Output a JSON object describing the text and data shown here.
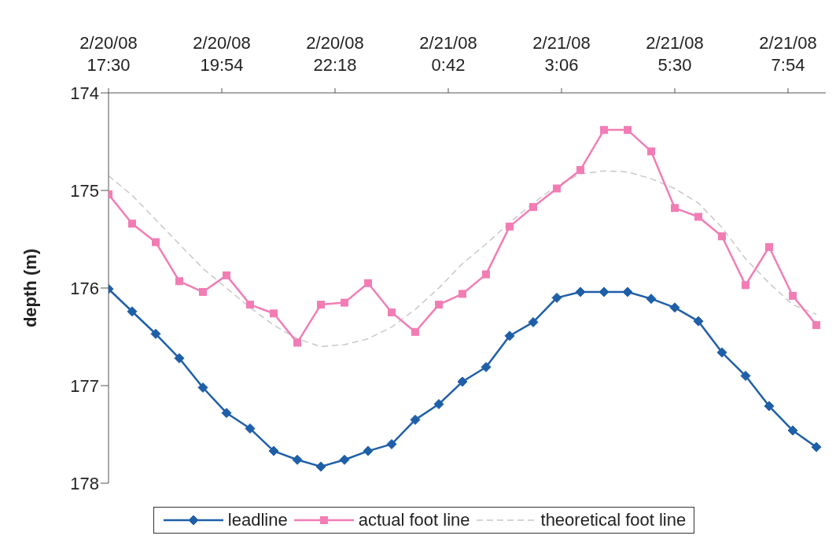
{
  "chart_data": {
    "type": "line",
    "ylabel": "depth (m)",
    "x": [
      "--02-20T17:30",
      "--02-20T18:00",
      "--02-20T18:30",
      "--02-20T19:00",
      "--02-20T19:30",
      "--02-20T20:00",
      "--02-20T20:30",
      "--02-20T21:00",
      "--02-20T21:30",
      "--02-20T22:00",
      "--02-20T22:30",
      "--02-20T23:00",
      "--02-20T23:30",
      "--02-21T00:00",
      "--02-21T00:30",
      "--02-21T01:00",
      "--02-21T01:30",
      "--02-21T02:00",
      "--02-21T02:30",
      "--02-21T03:00",
      "--02-21T03:30",
      "--02-21T04:00",
      "--02-21T04:30",
      "--02-21T05:00",
      "--02-21T05:30",
      "--02-21T06:00",
      "--02-21T06:30",
      "--02-21T07:00",
      "--02-21T07:30",
      "--02-21T08:00",
      "--02-21T08:30"
    ],
    "xlim": [
      "--02-20T17:30",
      "--02-21T08:42"
    ],
    "xticks": [
      {
        "value": "--02-20T17:30",
        "label": "2/20/08 17:30"
      },
      {
        "value": "--02-20T19:54",
        "label": "2/20/08 19:54"
      },
      {
        "value": "--02-20T22:18",
        "label": "2/20/08 22:18"
      },
      {
        "value": "--02-21T00:42",
        "label": "2/21/08 0:42"
      },
      {
        "value": "--02-21T03:06",
        "label": "2/21/08 3:06"
      },
      {
        "value": "--02-21T05:30",
        "label": "2/21/08 5:30"
      },
      {
        "value": "--02-21T07:54",
        "label": "2/21/08 7:54"
      }
    ],
    "ylim": [
      178,
      174
    ],
    "yticks": [
      174,
      175,
      176,
      177,
      178
    ],
    "grid": false,
    "legend": "bottom",
    "series": [
      {
        "name": "leadline",
        "color": "#1f5fa8",
        "marker": "diamond",
        "line_style": "solid",
        "values": [
          176.01,
          176.24,
          176.47,
          176.72,
          177.02,
          177.28,
          177.44,
          177.67,
          177.76,
          177.83,
          177.76,
          177.67,
          177.6,
          177.35,
          177.19,
          176.96,
          176.81,
          176.49,
          176.35,
          176.1,
          176.04,
          176.04,
          176.04,
          176.11,
          176.2,
          176.34,
          176.66,
          176.9,
          177.21,
          177.46,
          177.63
        ]
      },
      {
        "name": "actual foot line",
        "color": "#f27db5",
        "marker": "square",
        "line_style": "solid",
        "values": [
          175.04,
          175.34,
          175.53,
          175.93,
          176.04,
          175.87,
          176.17,
          176.26,
          176.56,
          176.17,
          176.15,
          175.95,
          176.25,
          176.45,
          176.17,
          176.06,
          175.86,
          175.37,
          175.17,
          174.98,
          174.79,
          174.38,
          174.38,
          174.6,
          175.18,
          175.27,
          175.47,
          175.97,
          175.58,
          176.08,
          176.38
        ]
      },
      {
        "name": "theoretical foot line",
        "color": "#c8c8c8",
        "marker": "none",
        "line_style": "dashed",
        "values": [
          174.85,
          175.05,
          175.3,
          175.55,
          175.8,
          176.0,
          176.2,
          176.38,
          176.52,
          176.6,
          176.58,
          176.52,
          176.4,
          176.22,
          176.0,
          175.75,
          175.55,
          175.33,
          175.13,
          174.95,
          174.83,
          174.8,
          174.81,
          174.88,
          174.98,
          175.13,
          175.38,
          175.7,
          175.95,
          176.17,
          176.27
        ]
      }
    ]
  }
}
